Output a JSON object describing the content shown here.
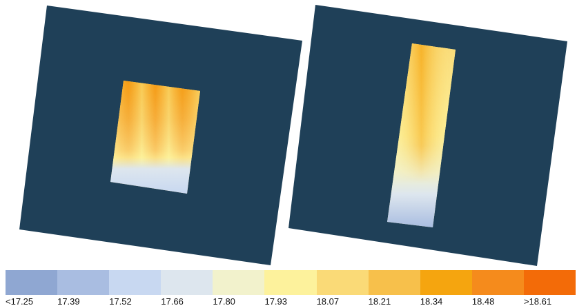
{
  "colors": {
    "background_panel": "#1f4058",
    "ramp": [
      "#8fa7d2",
      "#a9bde1",
      "#c8d8f1",
      "#dde6ee",
      "#f2f2cc",
      "#fdf29c",
      "#fada77",
      "#f7c04b",
      "#f5a50f",
      "#f58b1c",
      "#f36b08"
    ]
  },
  "legend": {
    "labels": [
      "<17.25",
      "17.39",
      "17.52",
      "17.66",
      "17.80",
      "17.93",
      "18.07",
      "18.21",
      "18.34",
      "18.48",
      ">18.61"
    ]
  },
  "panels": [
    {
      "name": "left-heatmap-panel",
      "footprint": "wide"
    },
    {
      "name": "right-heatmap-panel",
      "footprint": "narrow"
    }
  ]
}
